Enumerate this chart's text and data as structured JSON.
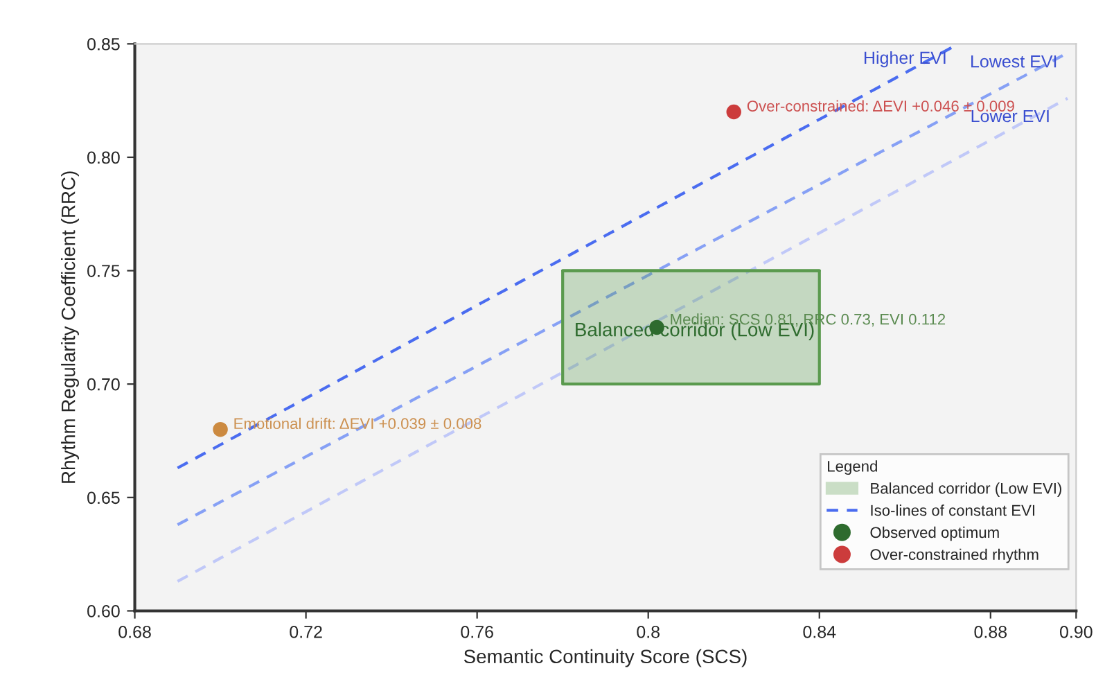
{
  "chart_data": {
    "type": "scatter",
    "xlabel": "Semantic Continuity Score (SCS)",
    "ylabel": "Rhythm Regularity Coefficient (RRC)",
    "xlim": [
      0.68,
      0.9
    ],
    "xticks": [
      0.68,
      0.72,
      0.76,
      0.8,
      0.84,
      0.88,
      {
        "value": 0.9,
        "label": "0.90"
      }
    ],
    "ylim": [
      0.6,
      0.85
    ],
    "yticks": [
      {
        "value": 0.6,
        "label": "0.60"
      },
      0.65,
      {
        "value": 0.7,
        "label": "0.70"
      },
      0.75,
      {
        "value": 0.8,
        "label": "0.80"
      },
      0.85
    ],
    "grid": false,
    "legend": "bottom right",
    "legend_title": "Legend",
    "series": [
      {
        "name": "Balanced corridor (Low EVI)",
        "type": "line",
        "line_style": "solid",
        "color": "#5a9a4e",
        "x": [
          0.78,
          0.84
        ],
        "values": [
          0.75,
          0.75
        ],
        "lower": [
          0.7,
          0.7
        ],
        "upper": [
          0.75,
          0.75
        ]
      },
      {
        "name": "Iso-lines of constant EVI",
        "type": "line",
        "line_style": "dashed",
        "color": "#4a6cf0",
        "x": [
          0.69,
          0.8725
        ],
        "values": [
          0.663,
          0.85
        ]
      },
      {
        "type": "line",
        "line_style": "dashed",
        "color": "#86a0f5",
        "x": [
          0.69,
          0.897
        ],
        "values": [
          0.638,
          0.845
        ]
      },
      {
        "type": "line",
        "line_style": "dashed",
        "color": "#c0c8f8",
        "x": [
          0.69,
          0.898
        ],
        "values": [
          0.613,
          0.826
        ]
      },
      {
        "name": "Observed optimum",
        "marker": "circle",
        "color": "#2e6b2e",
        "x": [
          0.802
        ],
        "values": [
          0.725
        ]
      },
      {
        "name": "Over-constrained rhythm",
        "marker": "circle",
        "color": "#cc3c3c",
        "x": [
          0.82
        ],
        "values": [
          0.82
        ]
      },
      {
        "marker": "circle",
        "color": "#cc8a40",
        "x": [
          0.7
        ],
        "values": [
          0.68
        ]
      }
    ],
    "annotations": [
      "Balanced corridor (Low EVI)",
      {
        "text": "Median: SCS 0.81, RRC 0.73, EVI 0.112",
        "x": 0.805,
        "y": 0.728
      },
      {
        "text": "Over-constrained: ΔEVI +0.046 ± 0.009",
        "x": 0.823,
        "y": 0.822
      },
      {
        "text": "Emotional drift: ΔEVI +0.039 ± 0.008",
        "x": 0.703,
        "y": 0.682
      },
      "Higher EVI",
      "Lowest EVI",
      "Lower EVI"
    ]
  }
}
